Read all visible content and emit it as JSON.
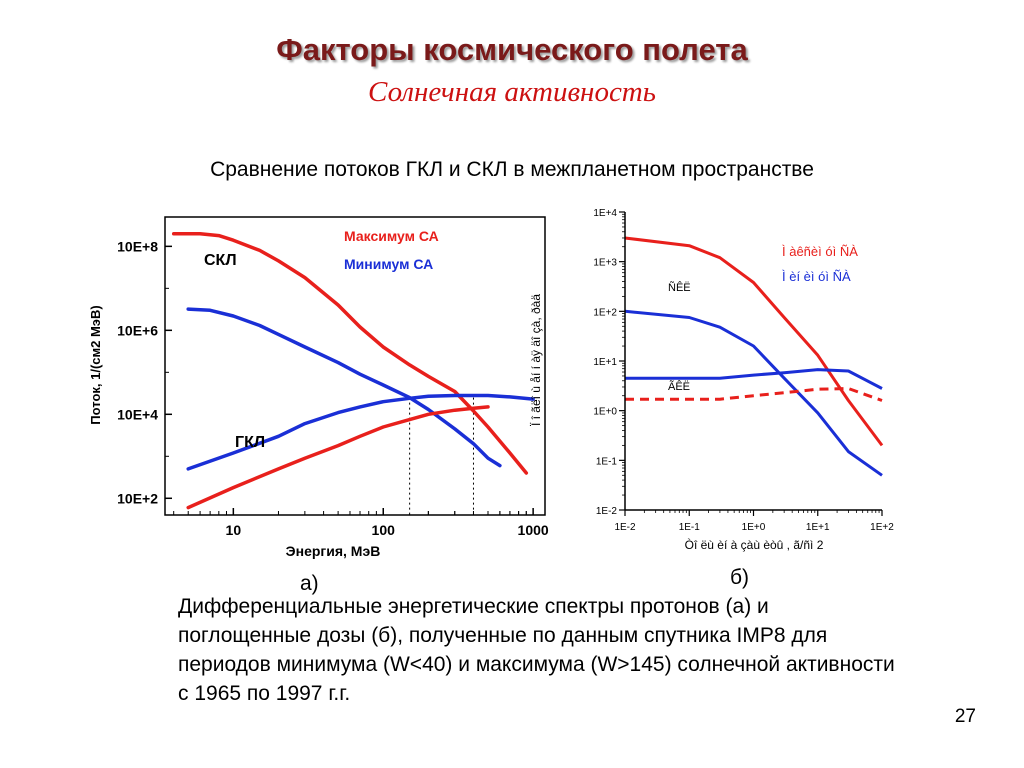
{
  "slide": {
    "title": "Факторы космического полета",
    "subtitle": "Солнечная активность",
    "heading": "Сравнение потоков ГКЛ и СКЛ в межпланетном пространстве",
    "label_a": "а)",
    "label_b": "б)",
    "caption": "Дифференциальные энергетические спектры протонов (а) и поглощенные дозы (б), полученные по данным спутника IMP8 для периодов минимума (W<40) и максимума (W>145) солнечной активности с 1965 по 1997 г.г.",
    "page_number": "27"
  },
  "colors": {
    "red": "#e8201c",
    "blue": "#1a2fd6",
    "axis": "#000000"
  },
  "chart_data": [
    {
      "type": "line",
      "title": "",
      "xlabel": "Энергия, МэВ",
      "ylabel": "Поток, 1/(см2 МэВ)",
      "x_scale": "log",
      "y_scale": "log",
      "xlim": [
        3.5,
        1200
      ],
      "ylim": [
        40,
        500000000
      ],
      "x_ticks": [
        10,
        100,
        1000
      ],
      "x_tick_labels": [
        "10",
        "100",
        "1000"
      ],
      "y_ticks": [
        100,
        10000,
        1000000,
        100000000
      ],
      "y_tick_labels": [
        "10E+2",
        "10E+4",
        "10E+6",
        "10E+8"
      ],
      "legend": [
        "Максимум СА",
        "Минимум СА"
      ],
      "annotations": [
        "СКЛ",
        "ГКЛ"
      ],
      "reference_lines_x": [
        150,
        400
      ],
      "series": [
        {
          "name": "Максимум СА",
          "group": "СКЛ",
          "color": "red",
          "style": "solid",
          "x": [
            4,
            6,
            8,
            10,
            15,
            20,
            30,
            50,
            70,
            100,
            150,
            200,
            300,
            400,
            500,
            700,
            900
          ],
          "y": [
            200000000,
            200000000,
            180000000,
            140000000,
            80000000,
            45000000,
            18000000,
            4000000,
            1200000,
            400000,
            150000,
            80000,
            35000,
            12000,
            5000,
            1200,
            400
          ]
        },
        {
          "name": "Минимум СА",
          "group": "СКЛ",
          "color": "blue",
          "style": "solid",
          "x": [
            5,
            7,
            10,
            15,
            20,
            30,
            50,
            70,
            100,
            150,
            200,
            300,
            400,
            500,
            600
          ],
          "y": [
            3200000,
            3000000,
            2200000,
            1300000,
            800000,
            400000,
            170000,
            90000,
            50000,
            25000,
            13000,
            4500,
            2000,
            900,
            600
          ]
        },
        {
          "name": "Минимум СА",
          "group": "ГКЛ",
          "color": "blue",
          "style": "solid",
          "x": [
            5,
            10,
            20,
            30,
            50,
            70,
            100,
            150,
            200,
            300,
            500,
            700,
            1000
          ],
          "y": [
            500,
            1200,
            3000,
            6000,
            11000,
            15000,
            20000,
            24000,
            27000,
            28000,
            28000,
            26000,
            23000
          ]
        },
        {
          "name": "Максимум СА",
          "group": "ГКЛ",
          "color": "red",
          "style": "solid",
          "x": [
            5,
            10,
            20,
            30,
            50,
            70,
            100,
            150,
            200,
            300,
            400,
            500
          ],
          "y": [
            60,
            180,
            500,
            900,
            1800,
            3000,
            5000,
            7500,
            10000,
            12500,
            14000,
            15000
          ]
        }
      ]
    },
    {
      "type": "line",
      "title": "",
      "xlabel": "Òî ëù èí à çàù èòû , ã/ñì 2",
      "ylabel": "Ï î ãëî ù åí í àÿ äî çà, ðàä",
      "x_scale": "log",
      "y_scale": "log",
      "xlim": [
        0.01,
        100
      ],
      "ylim": [
        0.01,
        10000
      ],
      "x_ticks": [
        0.01,
        0.1,
        1,
        10,
        100
      ],
      "x_tick_labels": [
        "1E-2",
        "1E-1",
        "1E+0",
        "1E+1",
        "1E+2"
      ],
      "y_ticks": [
        0.01,
        0.1,
        1,
        10,
        100,
        1000,
        10000
      ],
      "y_tick_labels": [
        "1E-2",
        "1E-1",
        "1E+0",
        "1E+1",
        "1E+2",
        "1E+3",
        "1E+4"
      ],
      "legend": [
        "Ì àêñèì óì  ÑÀ",
        "Ì èí èì óì  ÑÀ"
      ],
      "annotations": [
        "ÑÊË",
        "ÃÊË"
      ],
      "series": [
        {
          "name": "Ì àêñèì óì  ÑÀ",
          "group": "ÑÊË",
          "color": "red",
          "style": "solid",
          "x": [
            0.01,
            0.1,
            0.3,
            1,
            3,
            10,
            30,
            100
          ],
          "y": [
            3000,
            2100,
            1200,
            380,
            75,
            13,
            1.6,
            0.2
          ]
        },
        {
          "name": "Ì èí èì óì  ÑÀ",
          "group": "ÑÊË",
          "color": "blue",
          "style": "solid",
          "x": [
            0.01,
            0.1,
            0.3,
            1,
            3,
            10,
            30,
            100
          ],
          "y": [
            100,
            75,
            48,
            20,
            4.5,
            0.9,
            0.15,
            0.05
          ]
        },
        {
          "name": "Ì èí èì óì  ÑÀ",
          "group": "ÃÊË",
          "color": "blue",
          "style": "solid",
          "x": [
            0.01,
            0.1,
            0.3,
            1,
            3,
            10,
            30,
            100
          ],
          "y": [
            4.5,
            4.5,
            4.5,
            5.2,
            5.8,
            6.7,
            6.3,
            2.8
          ]
        },
        {
          "name": "Ì àêñèì óì  ÑÀ",
          "group": "ÃÊË",
          "color": "red",
          "style": "dashed",
          "x": [
            0.01,
            0.1,
            0.3,
            1,
            3,
            10,
            30,
            100
          ],
          "y": [
            1.7,
            1.7,
            1.7,
            2.0,
            2.3,
            2.7,
            2.8,
            1.6
          ]
        }
      ]
    }
  ]
}
